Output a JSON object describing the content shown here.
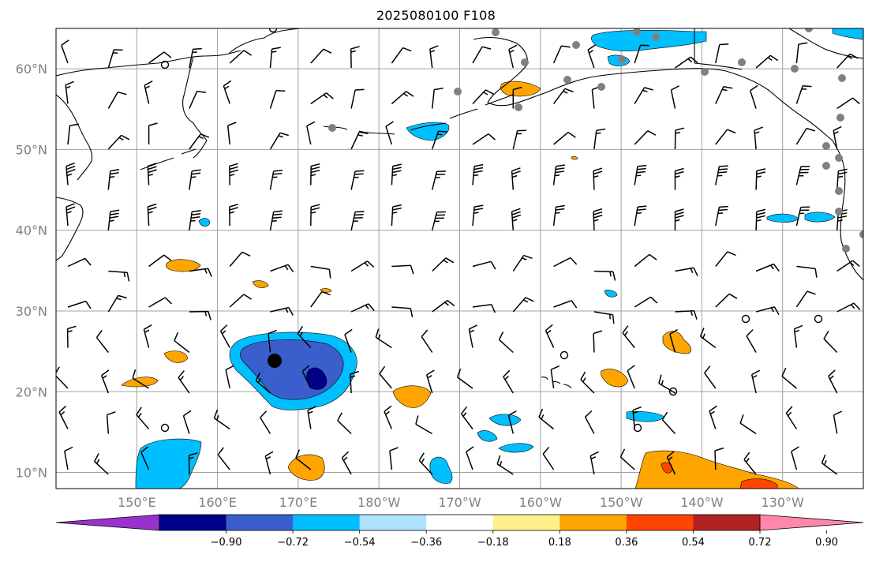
{
  "title": "2025080100 F108",
  "map": {
    "lat_labels": [
      "60°N",
      "50°N",
      "40°N",
      "30°N",
      "20°N",
      "10°N"
    ],
    "lon_labels": [
      "150°E",
      "160°E",
      "170°E",
      "180°W",
      "170°W",
      "160°W",
      "150°W",
      "140°W",
      "130°W"
    ],
    "lat_values": [
      60,
      50,
      40,
      30,
      20,
      10
    ],
    "lon_values": [
      150,
      160,
      170,
      180,
      190,
      200,
      210,
      220,
      230
    ],
    "extent": {
      "lon_min": 140,
      "lon_max": 240,
      "lat_min": 8,
      "lat_max": 65
    },
    "gridline_color": "#a0a0a0",
    "coastline_color": "#000000"
  },
  "colorbar": {
    "tick_labels": [
      "−0.90",
      "−0.72",
      "−0.54",
      "−0.36",
      "−0.18",
      "0.18",
      "0.36",
      "0.54",
      "0.72",
      "0.90"
    ],
    "levels": [
      -0.9,
      -0.72,
      -0.54,
      -0.36,
      -0.18,
      0.18,
      0.36,
      0.54,
      0.72,
      0.9
    ],
    "colors": [
      "#9932cc",
      "#00008b",
      "#3a5fcd",
      "#00bfff",
      "#b0e2ff",
      "#ffffff",
      "#fff08c",
      "#ffa500",
      "#ff4500",
      "#b22222",
      "#ff88aa"
    ],
    "extend": "both"
  }
}
